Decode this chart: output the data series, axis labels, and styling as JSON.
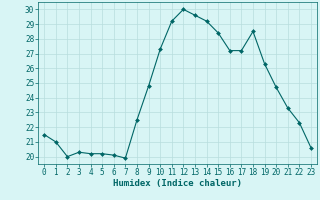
{
  "x": [
    0,
    1,
    2,
    3,
    4,
    5,
    6,
    7,
    8,
    9,
    10,
    11,
    12,
    13,
    14,
    15,
    16,
    17,
    18,
    19,
    20,
    21,
    22,
    23
  ],
  "y": [
    21.5,
    21.0,
    20.0,
    20.3,
    20.2,
    20.2,
    20.1,
    19.9,
    22.5,
    24.8,
    27.3,
    29.2,
    30.0,
    29.6,
    29.2,
    28.4,
    27.2,
    27.2,
    28.5,
    26.3,
    24.7,
    23.3,
    22.3,
    20.6
  ],
  "line_color": "#006666",
  "marker": "D",
  "marker_size": 2,
  "bg_color": "#d8f5f5",
  "grid_color": "#b8dede",
  "xlabel": "Humidex (Indice chaleur)",
  "ylim": [
    19.5,
    30.5
  ],
  "xlim": [
    -0.5,
    23.5
  ],
  "yticks": [
    20,
    21,
    22,
    23,
    24,
    25,
    26,
    27,
    28,
    29,
    30
  ],
  "xticks": [
    0,
    1,
    2,
    3,
    4,
    5,
    6,
    7,
    8,
    9,
    10,
    11,
    12,
    13,
    14,
    15,
    16,
    17,
    18,
    19,
    20,
    21,
    22,
    23
  ],
  "tick_color": "#006666",
  "label_color": "#006666",
  "xlabel_fontsize": 6.5,
  "tick_fontsize": 5.5
}
